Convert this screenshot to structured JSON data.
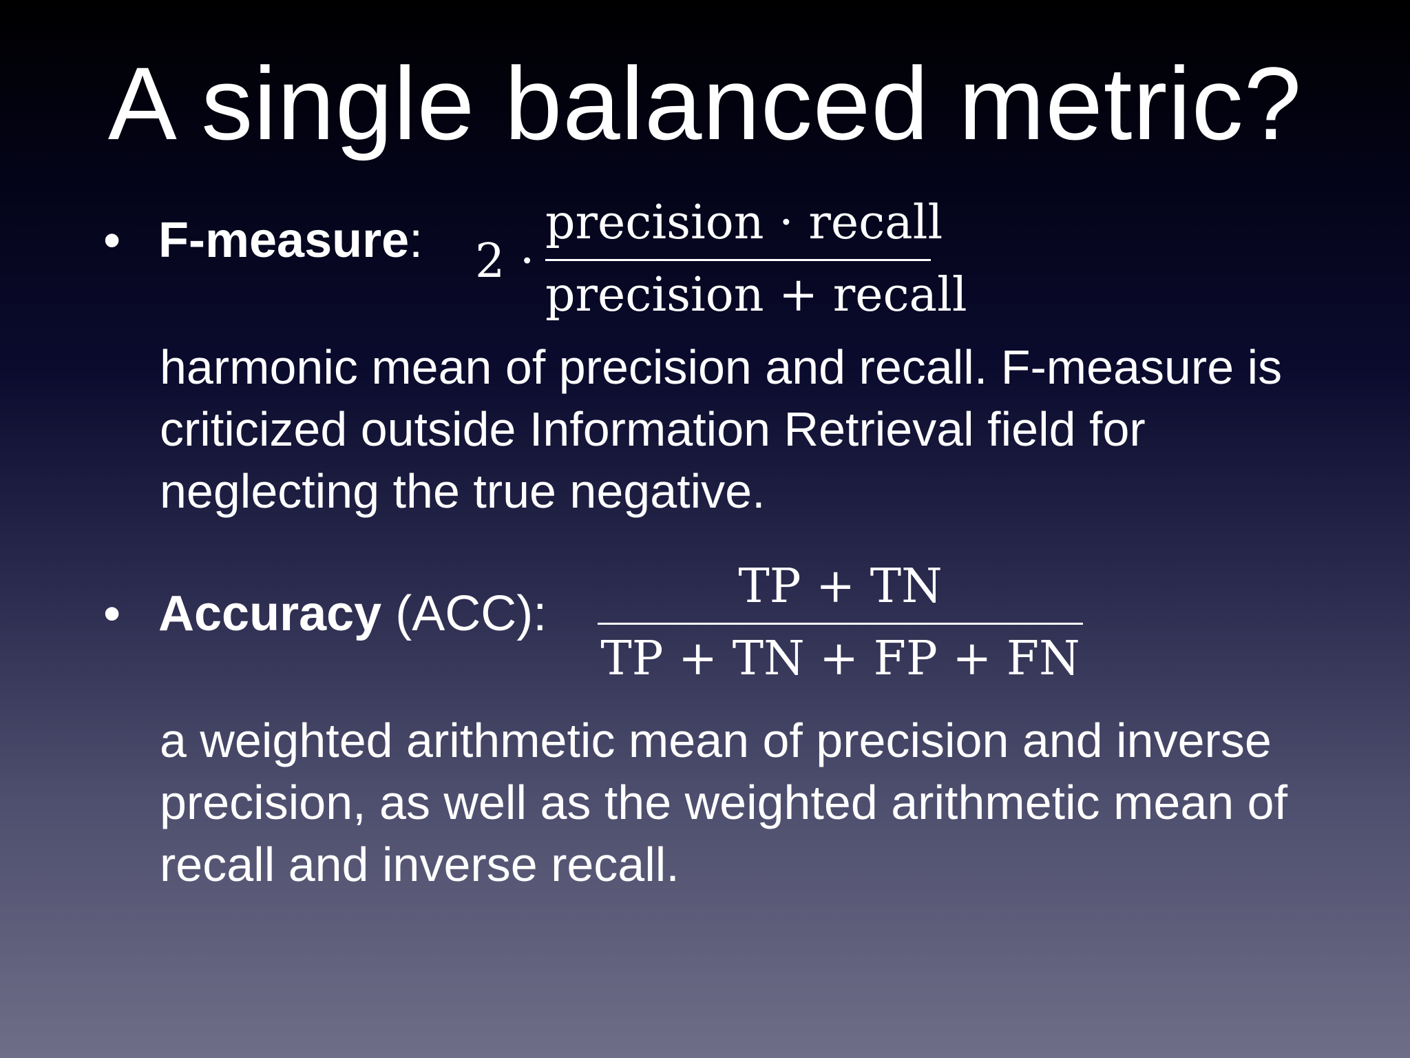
{
  "slide": {
    "title": "A single balanced metric?",
    "bullets": [
      {
        "marker": "•",
        "term": "F-measure",
        "suffix": ":",
        "formula": {
          "prefix": "2 ·",
          "numerator": "precision · recall",
          "denominator": "precision + recall"
        },
        "description": "harmonic mean of precision and recall. F-measure is criticized outside Information Retrieval field for neglecting the true negative."
      },
      {
        "marker": "•",
        "term": "Accuracy",
        "suffix": " (ACC):",
        "formula": {
          "numerator": "TP + TN",
          "denominator": "TP + TN + FP + FN"
        },
        "description": "a weighted arithmetic mean of precision and inverse precision, as well as the weighted arithmetic mean of recall and inverse recall."
      }
    ]
  }
}
